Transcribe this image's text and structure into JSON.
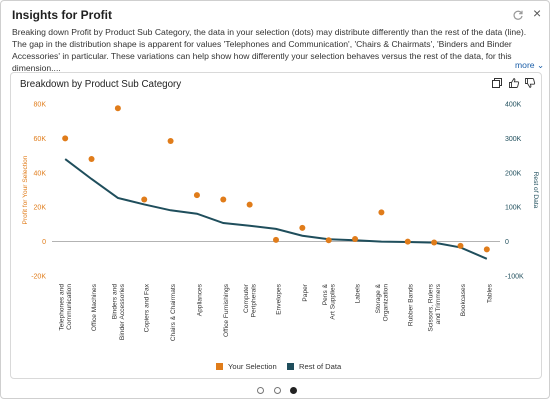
{
  "panel": {
    "title": "Insights for Profit",
    "description": "Breaking down Profit by Product Sub Category, the data in your selection (dots) may distribute differently than the rest of the data (line). The gap in the distribution shape is apparent for values 'Telephones and Communication', 'Chairs & Chairmats', 'Binders and Binder Accessories' in particular. These variations can help show how differently your selection behaves versus the rest of the data, for this dimension....",
    "more_label": "more",
    "refresh_icon": "refresh-icon",
    "close_icon": "close-icon"
  },
  "card": {
    "title": "Breakdown by Product Sub Category",
    "tools": [
      "expand-icon",
      "thumbs-up-icon",
      "thumbs-down-icon"
    ]
  },
  "legend": {
    "selection_label": "Your Selection",
    "rest_label": "Rest of Data"
  },
  "pagination": {
    "pages": 3,
    "active": 3
  },
  "chart_data": {
    "type": "line",
    "categories": [
      "Telephones and Communication",
      "Office Machines",
      "Binders and Binder Accessories",
      "Copiers and Fax",
      "Chairs & Chairmats",
      "Appliances",
      "Office Furnishings",
      "Computer Peripherals",
      "Envelopes",
      "Paper",
      "Pens & Art Supplies",
      "Labels",
      "Storage & Organization",
      "Rubber Bands",
      "Scissors, Rulers and Trimmers",
      "Bookcases",
      "Tables"
    ],
    "series": [
      {
        "name": "Your Selection",
        "type": "scatter",
        "axis": "left",
        "color": "#e07c1a",
        "values": [
          60000,
          48000,
          77500,
          24500,
          58500,
          27000,
          24500,
          21500,
          1000,
          8000,
          800,
          1500,
          17000,
          0,
          -500,
          -2500,
          -4500
        ]
      },
      {
        "name": "Rest of Data",
        "type": "line",
        "axis": "right",
        "color": "#1f4e5c",
        "values": [
          240000,
          182000,
          127000,
          108000,
          91000,
          81000,
          54000,
          46000,
          37000,
          17000,
          7000,
          4000,
          0,
          -1000,
          -3000,
          -17000,
          -50000
        ]
      }
    ],
    "ylabel": "Profit for Your Selection",
    "y2label": "Rest of Data",
    "ylim": [
      -20000,
      80000
    ],
    "y2lim": [
      -100000,
      400000
    ],
    "yticks": [
      "80K",
      "60K",
      "40K",
      "20K",
      "0",
      "-20K"
    ],
    "y2ticks": [
      "400K",
      "300K",
      "200K",
      "100K",
      "0",
      "-100K"
    ],
    "grid": false
  }
}
